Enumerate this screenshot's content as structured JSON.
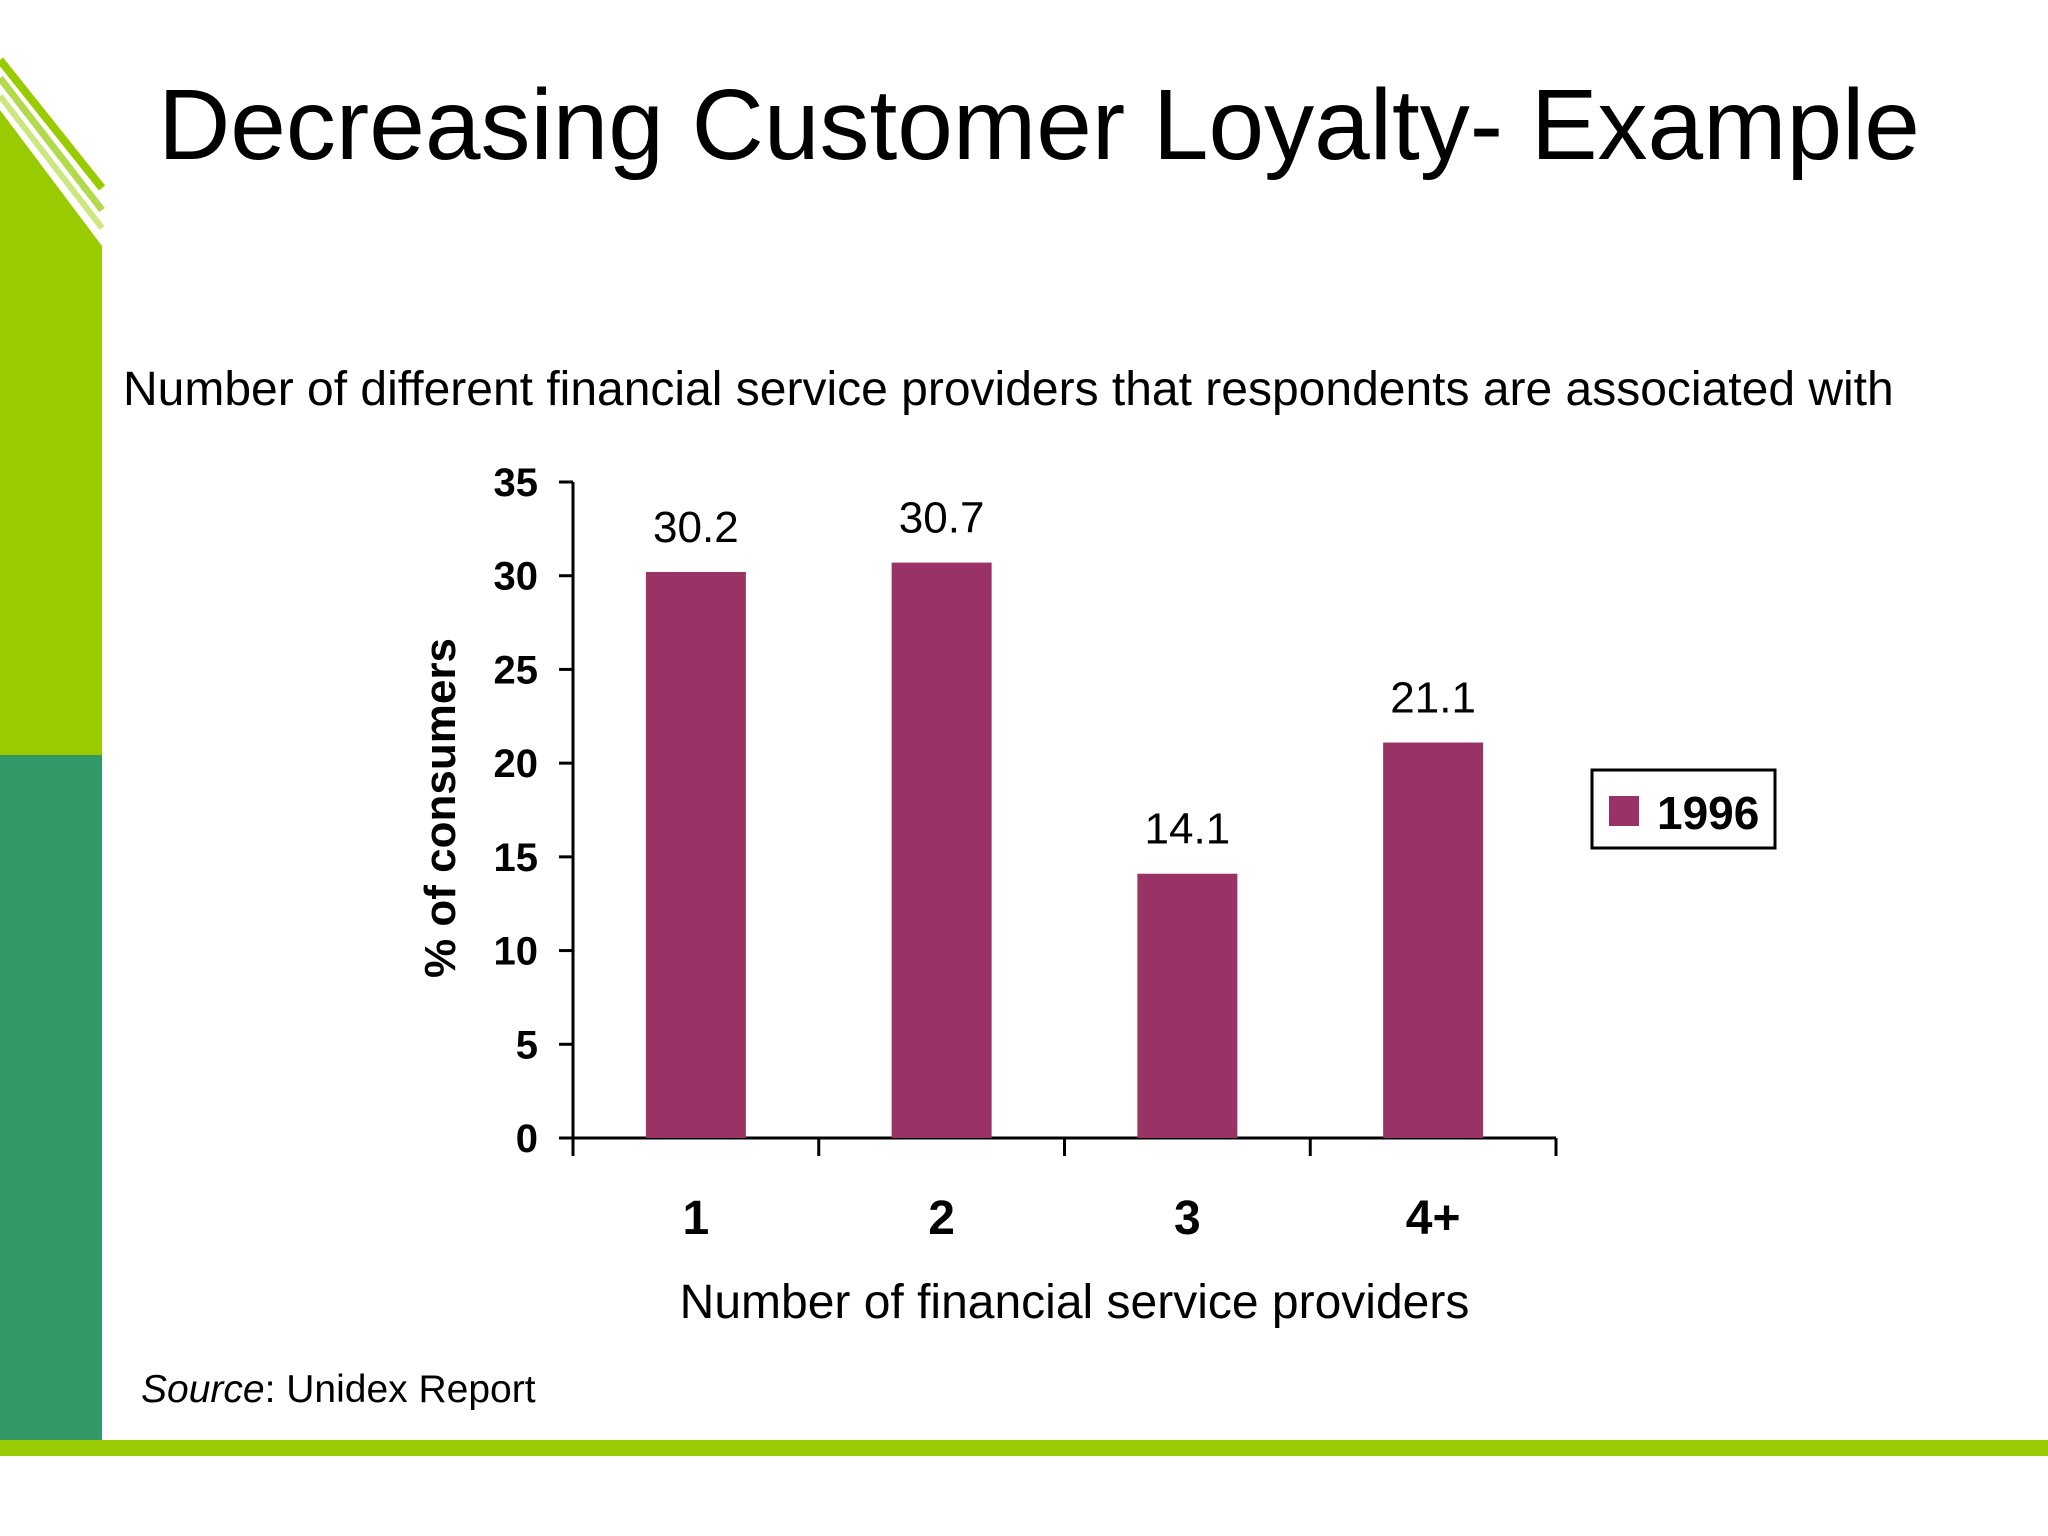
{
  "slide": {
    "title": "Decreasing Customer Loyalty- Example",
    "source_label": "Source",
    "source_text": ": Unidex Report"
  },
  "colors": {
    "accent_lime": "#99cc00",
    "accent_green": "#339966",
    "bar": "#993366"
  },
  "chart_data": {
    "type": "bar",
    "title": "",
    "subtitle": "Number of different financial service providers that respondents are associated with",
    "xlabel": "Number of financial service providers",
    "ylabel": "% of consumers",
    "categories": [
      "1",
      "2",
      "3",
      "4+"
    ],
    "series": [
      {
        "name": "1996",
        "values": [
          30.2,
          30.7,
          14.1,
          21.1
        ],
        "color": "#993366"
      }
    ],
    "data_labels": [
      "30.2",
      "30.7",
      "14.1",
      "21.1"
    ],
    "ylim": [
      0,
      35
    ],
    "yticks": [
      0,
      5,
      10,
      15,
      20,
      25,
      30,
      35
    ],
    "grid": false,
    "legend": "right"
  }
}
